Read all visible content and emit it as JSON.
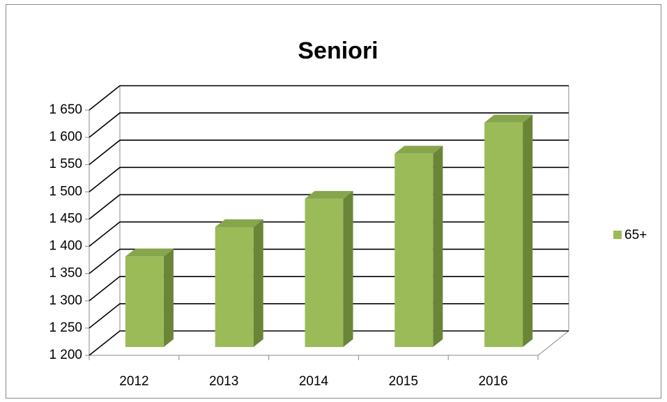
{
  "chart_data": {
    "type": "bar3d",
    "title": "Seniori",
    "categories": [
      "2012",
      "2013",
      "2014",
      "2015",
      "2016"
    ],
    "series": [
      {
        "name": "65+",
        "color": "#9bbb59",
        "values": [
          1366,
          1420,
          1472,
          1555,
          1612
        ]
      }
    ],
    "ylim": [
      1200,
      1650
    ],
    "yticks": [
      {
        "value": 1200,
        "label": "1 200"
      },
      {
        "value": 1250,
        "label": "1 250"
      },
      {
        "value": 1300,
        "label": "1 300"
      },
      {
        "value": 1350,
        "label": "1 350"
      },
      {
        "value": 1400,
        "label": "1 400"
      },
      {
        "value": 1450,
        "label": "1 450"
      },
      {
        "value": 1500,
        "label": "1 500"
      },
      {
        "value": 1550,
        "label": "1 550"
      },
      {
        "value": 1600,
        "label": "1 600"
      },
      {
        "value": 1650,
        "label": "1 650"
      }
    ],
    "grid": true,
    "legend": "right"
  }
}
